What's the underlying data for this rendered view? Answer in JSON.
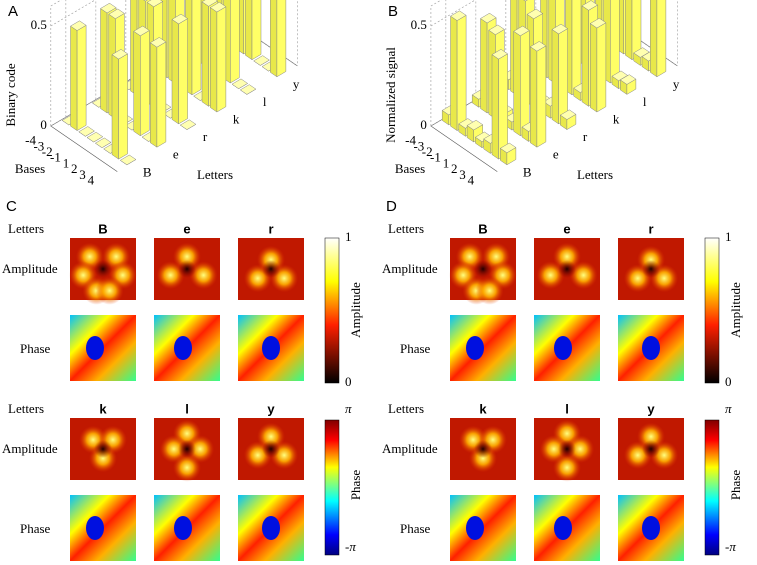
{
  "chart_data": [
    {
      "type": "bar3d",
      "label": "A",
      "zlabel": "Binary code",
      "xlabel": "Bases",
      "ylabel": "Letters",
      "categories": [
        "-4",
        "-3",
        "-2",
        "-1",
        "1",
        "2",
        "3",
        "4"
      ],
      "series": [
        {
          "name": "B",
          "values": [
            0,
            0.5,
            0,
            0,
            0,
            0,
            0.5,
            0
          ]
        },
        {
          "name": "e",
          "values": [
            0,
            0.5,
            0.5,
            0,
            0,
            0.5,
            0,
            0.5
          ]
        },
        {
          "name": "r",
          "values": [
            0,
            0.5,
            0.5,
            0.5,
            0,
            0,
            0.5,
            0
          ]
        },
        {
          "name": "k",
          "values": [
            0,
            0.5,
            0.5,
            0,
            0.5,
            0,
            0.5,
            0.5
          ]
        },
        {
          "name": "l",
          "values": [
            0,
            0.5,
            0.5,
            0,
            0.5,
            0.5,
            0,
            0
          ]
        },
        {
          "name": "y",
          "values": [
            0,
            0.5,
            0.5,
            0.5,
            0.5,
            0,
            0,
            0.5
          ]
        }
      ],
      "zlim": [
        0,
        0.6
      ],
      "zticks": [
        0,
        0.5
      ],
      "color": "#ffff66"
    },
    {
      "type": "bar3d",
      "label": "B",
      "zlabel": "Normalized signal",
      "xlabel": "Bases",
      "ylabel": "Letters",
      "categories": [
        "-4",
        "-3",
        "-2",
        "-1",
        "1",
        "2",
        "3",
        "4"
      ],
      "series": [
        {
          "name": "B",
          "values": [
            0.05,
            0.55,
            0.04,
            0.06,
            0.03,
            0.05,
            0.5,
            0.06
          ]
        },
        {
          "name": "e",
          "values": [
            0.04,
            0.45,
            0.42,
            0.05,
            0.04,
            0.5,
            0.05,
            0.48
          ]
        },
        {
          "name": "r",
          "values": [
            0.05,
            0.48,
            0.5,
            0.44,
            0.04,
            0.06,
            0.45,
            0.05
          ]
        },
        {
          "name": "k",
          "values": [
            0.04,
            0.5,
            0.46,
            0.05,
            0.52,
            0.04,
            0.48,
            0.42
          ]
        },
        {
          "name": "l",
          "values": [
            0.06,
            0.55,
            0.58,
            0.05,
            0.5,
            0.47,
            0.04,
            0.05
          ]
        },
        {
          "name": "y",
          "values": [
            0.05,
            0.6,
            0.55,
            0.52,
            0.5,
            0.04,
            0.05,
            0.45
          ]
        }
      ],
      "zlim": [
        0,
        0.6
      ],
      "zticks": [
        0,
        0.5
      ],
      "color": "#ffff66"
    }
  ],
  "image_panels": [
    {
      "label": "C",
      "letters_title": "Letters",
      "amplitude_title": "Amplitude",
      "phase_title": "Phase",
      "groups": [
        [
          "B",
          "e",
          "r"
        ],
        [
          "k",
          "l",
          "y"
        ]
      ],
      "amplitude_colorbar": {
        "label": "Amplitude",
        "ticks": [
          1,
          0
        ]
      },
      "phase_colorbar": {
        "label": "Phase",
        "ticks": [
          "π",
          "-π"
        ]
      }
    },
    {
      "label": "D",
      "letters_title": "Letters",
      "amplitude_title": "Amplitude",
      "phase_title": "Phase",
      "groups": [
        [
          "B",
          "e",
          "r"
        ],
        [
          "k",
          "l",
          "y"
        ]
      ],
      "amplitude_colorbar": {
        "label": "Amplitude",
        "ticks": [
          1,
          0
        ]
      },
      "phase_colorbar": {
        "label": "Phase",
        "ticks": [
          "π",
          "-π"
        ]
      }
    }
  ]
}
